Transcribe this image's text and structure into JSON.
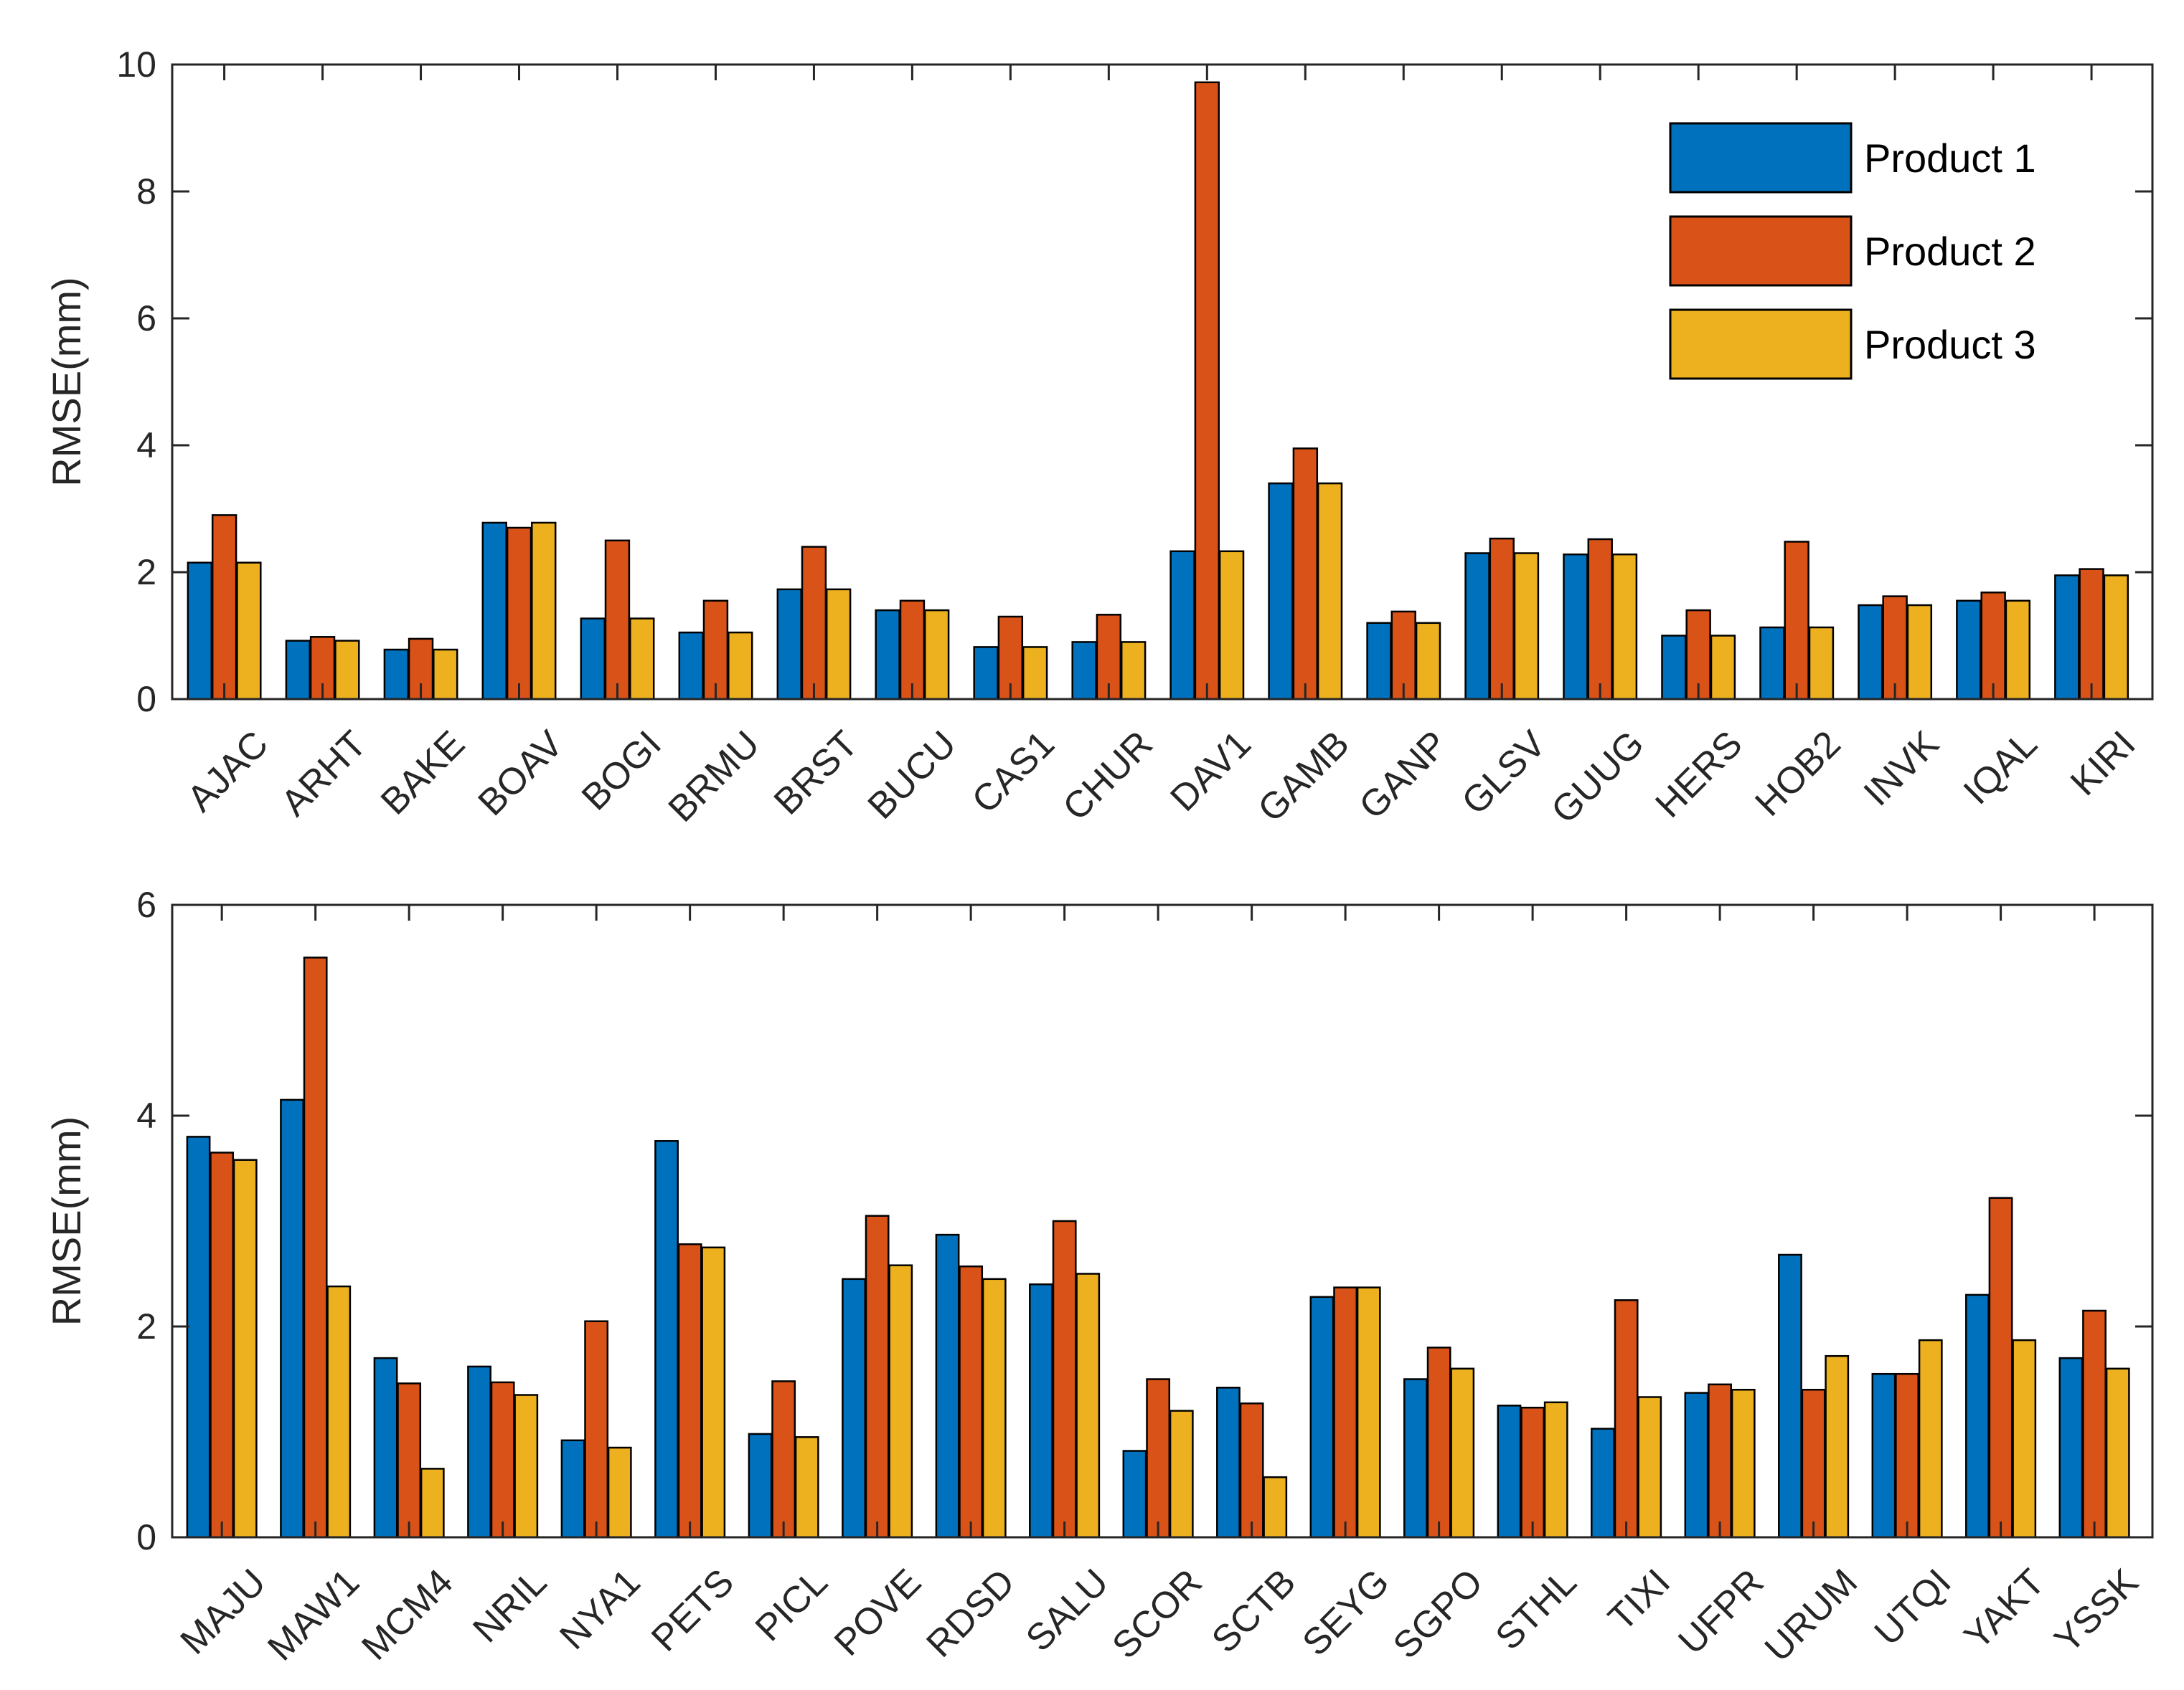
{
  "colors": {
    "p1": "#0072BD",
    "p2": "#D95319",
    "p3": "#EDB120",
    "axis": "#262626"
  },
  "legend": {
    "position": "top-right of top chart",
    "items": [
      "Product 1",
      "Product 2",
      "Product 3"
    ]
  },
  "chart_data": [
    {
      "type": "bar",
      "title": "",
      "xlabel": "",
      "ylabel": "RMSE(mm)",
      "ylim": [
        0,
        10
      ],
      "yticks": [
        0,
        2,
        4,
        6,
        8,
        10
      ],
      "grid": false,
      "categories": [
        "AJAC",
        "ARHT",
        "BAKE",
        "BOAV",
        "BOGI",
        "BRMU",
        "BRST",
        "BUCU",
        "CAS1",
        "CHUR",
        "DAV1",
        "GAMB",
        "GANP",
        "GLSV",
        "GUUG",
        "HERS",
        "HOB2",
        "INVK",
        "IQAL",
        "KIRI"
      ],
      "series": [
        {
          "name": "Product 1",
          "values": [
            2.15,
            0.92,
            0.78,
            2.78,
            1.27,
            1.05,
            1.73,
            1.4,
            0.82,
            0.9,
            2.33,
            3.4,
            1.2,
            2.3,
            2.28,
            1.0,
            1.13,
            1.48,
            1.55,
            1.95
          ]
        },
        {
          "name": "Product 2",
          "values": [
            2.9,
            0.98,
            0.95,
            2.7,
            2.5,
            1.55,
            2.4,
            1.55,
            1.3,
            1.33,
            9.72,
            3.95,
            1.38,
            2.53,
            2.52,
            1.4,
            2.48,
            1.62,
            1.68,
            2.05
          ]
        },
        {
          "name": "Product 3",
          "values": [
            2.15,
            0.92,
            0.78,
            2.78,
            1.27,
            1.05,
            1.73,
            1.4,
            0.82,
            0.9,
            2.33,
            3.4,
            1.2,
            2.3,
            2.28,
            1.0,
            1.13,
            1.48,
            1.55,
            1.95
          ]
        }
      ]
    },
    {
      "type": "bar",
      "title": "",
      "xlabel": "",
      "ylabel": "RMSE(mm)",
      "ylim": [
        0,
        6
      ],
      "yticks": [
        0,
        2,
        4,
        6
      ],
      "grid": false,
      "categories": [
        "MAJU",
        "MAW1",
        "MCM4",
        "NRIL",
        "NYA1",
        "PETS",
        "PICL",
        "POVE",
        "RDSD",
        "SALU",
        "SCOR",
        "SCTB",
        "SEYG",
        "SGPO",
        "STHL",
        "TIXI",
        "UFPR",
        "URUM",
        "UTQI",
        "YAKT",
        "YSSK"
      ],
      "series": [
        {
          "name": "Product 1",
          "values": [
            3.8,
            4.15,
            1.7,
            1.62,
            0.92,
            3.76,
            0.98,
            2.45,
            2.87,
            2.4,
            0.82,
            1.42,
            2.28,
            1.5,
            1.25,
            1.03,
            1.37,
            2.68,
            1.55,
            2.3,
            1.7
          ]
        },
        {
          "name": "Product 2",
          "values": [
            3.65,
            5.5,
            1.46,
            1.47,
            2.05,
            2.78,
            1.48,
            3.05,
            2.57,
            3.0,
            1.5,
            1.27,
            2.37,
            1.8,
            1.23,
            2.25,
            1.45,
            1.4,
            1.55,
            3.22,
            2.15
          ]
        },
        {
          "name": "Product 3",
          "values": [
            3.58,
            2.38,
            0.65,
            1.35,
            0.85,
            2.75,
            0.95,
            2.58,
            2.45,
            2.5,
            1.2,
            0.57,
            2.37,
            1.6,
            1.28,
            1.33,
            1.4,
            1.72,
            1.87,
            1.87,
            1.6
          ]
        }
      ]
    }
  ]
}
